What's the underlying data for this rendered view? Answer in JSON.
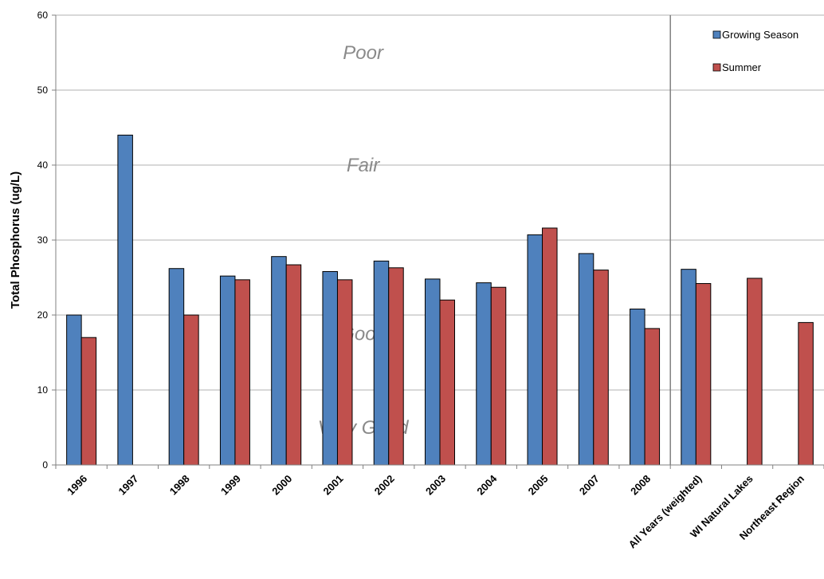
{
  "chart_data": {
    "type": "bar",
    "ylabel": "Total Phosphorus (ug/L)",
    "xlabel": "",
    "ylim": [
      0,
      60
    ],
    "yticks": [
      0,
      10,
      20,
      30,
      40,
      50,
      60
    ],
    "grid": true,
    "legend_position": "top-right",
    "categories": [
      "1996",
      "1997",
      "1998",
      "1999",
      "2000",
      "2001",
      "2002",
      "2003",
      "2004",
      "2005",
      "2007",
      "2008",
      "All Years (weighted)",
      "WI Natural Lakes",
      "Northeast Region"
    ],
    "series": [
      {
        "name": "Growing Season",
        "color": "#4f81bd",
        "values": [
          20,
          44,
          26.2,
          25.2,
          27.8,
          25.8,
          27.2,
          24.8,
          24.3,
          30.7,
          28.2,
          20.8,
          26.1,
          null,
          null
        ]
      },
      {
        "name": "Summer",
        "color": "#c0504d",
        "values": [
          17,
          null,
          20,
          24.7,
          26.7,
          24.7,
          26.3,
          22,
          23.7,
          31.6,
          26,
          18.2,
          24.2,
          24.9,
          19
        ]
      }
    ],
    "trophic_bands": [
      {
        "label": "Poor",
        "y": 55
      },
      {
        "label": "Fair",
        "y": 40
      },
      {
        "label": "Good",
        "y": 17.5
      },
      {
        "label": "Very Good",
        "y": 5
      }
    ],
    "separator_after_category": "2008"
  }
}
